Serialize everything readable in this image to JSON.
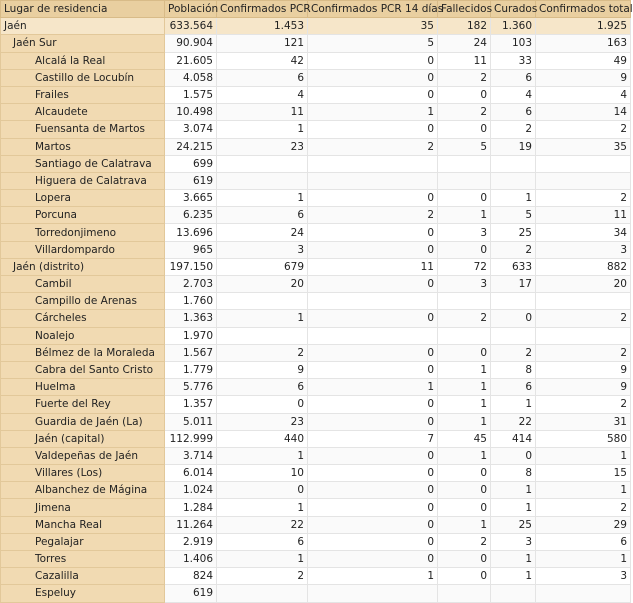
{
  "table": {
    "header": [
      "Lugar de residencia",
      "Población",
      "Confirmados PCR",
      "Confirmados PCR 14 días",
      "Fallecidos",
      "Curados",
      "Confirmados total"
    ],
    "province": [
      "Jaén",
      "633.564",
      "1.453",
      "35",
      "182",
      "1.360",
      "1.925"
    ],
    "districts": [
      {
        "row": [
          "Jaén Sur",
          "90.904",
          "121",
          "5",
          "24",
          "103",
          "163"
        ],
        "municipalities": [
          [
            "Alcalá la Real",
            "21.605",
            "42",
            "0",
            "11",
            "33",
            "49"
          ],
          [
            "Castillo de Locubín",
            "4.058",
            "6",
            "0",
            "2",
            "6",
            "9"
          ],
          [
            "Frailes",
            "1.575",
            "4",
            "0",
            "0",
            "4",
            "4"
          ],
          [
            "Alcaudete",
            "10.498",
            "11",
            "1",
            "2",
            "6",
            "14"
          ],
          [
            "Fuensanta de Martos",
            "3.074",
            "1",
            "0",
            "0",
            "2",
            "2"
          ],
          [
            "Martos",
            "24.215",
            "23",
            "2",
            "5",
            "19",
            "35"
          ],
          [
            "Santiago de Calatrava",
            "699",
            null,
            null,
            null,
            null,
            null
          ],
          [
            "Higuera de Calatrava",
            "619",
            null,
            null,
            null,
            null,
            null
          ],
          [
            "Lopera",
            "3.665",
            "1",
            "0",
            "0",
            "1",
            "2"
          ],
          [
            "Porcuna",
            "6.235",
            "6",
            "2",
            "1",
            "5",
            "11"
          ],
          [
            "Torredonjimeno",
            "13.696",
            "24",
            "0",
            "3",
            "25",
            "34"
          ],
          [
            "Villardompardo",
            "965",
            "3",
            "0",
            "0",
            "2",
            "3"
          ]
        ]
      },
      {
        "row": [
          "Jaén (distrito)",
          "197.150",
          "679",
          "11",
          "72",
          "633",
          "882"
        ],
        "municipalities": [
          [
            "Cambil",
            "2.703",
            "20",
            "0",
            "3",
            "17",
            "20"
          ],
          [
            "Campillo de Arenas",
            "1.760",
            null,
            null,
            null,
            null,
            null
          ],
          [
            "Cárcheles",
            "1.363",
            "1",
            "0",
            "2",
            "0",
            "2"
          ],
          [
            "Noalejo",
            "1.970",
            null,
            null,
            null,
            null,
            null
          ],
          [
            "Bélmez de la Moraleda",
            "1.567",
            "2",
            "0",
            "0",
            "2",
            "2"
          ],
          [
            "Cabra del Santo Cristo",
            "1.779",
            "9",
            "0",
            "1",
            "8",
            "9"
          ],
          [
            "Huelma",
            "5.776",
            "6",
            "1",
            "1",
            "6",
            "9"
          ],
          [
            "Fuerte del Rey",
            "1.357",
            "0",
            "0",
            "1",
            "1",
            "2"
          ],
          [
            "Guardia de Jaén (La)",
            "5.011",
            "23",
            "0",
            "1",
            "22",
            "31"
          ],
          [
            "Jaén (capital)",
            "112.999",
            "440",
            "7",
            "45",
            "414",
            "580"
          ],
          [
            "Valdepeñas de Jaén",
            "3.714",
            "1",
            "0",
            "1",
            "0",
            "1"
          ],
          [
            "Villares (Los)",
            "6.014",
            "10",
            "0",
            "0",
            "8",
            "15"
          ],
          [
            "Albanchez de Mágina",
            "1.024",
            "0",
            "0",
            "0",
            "1",
            "1"
          ],
          [
            "Jimena",
            "1.284",
            "1",
            "0",
            "0",
            "1",
            "2"
          ],
          [
            "Mancha Real",
            "11.264",
            "22",
            "0",
            "1",
            "25",
            "29"
          ],
          [
            "Pegalajar",
            "2.919",
            "6",
            "0",
            "2",
            "3",
            "6"
          ],
          [
            "Torres",
            "1.406",
            "1",
            "0",
            "0",
            "1",
            "1"
          ],
          [
            "Cazalilla",
            "824",
            "2",
            "1",
            "0",
            "1",
            "3"
          ],
          [
            "Espeluy",
            "619",
            null,
            null,
            null,
            null,
            null
          ]
        ]
      }
    ]
  }
}
